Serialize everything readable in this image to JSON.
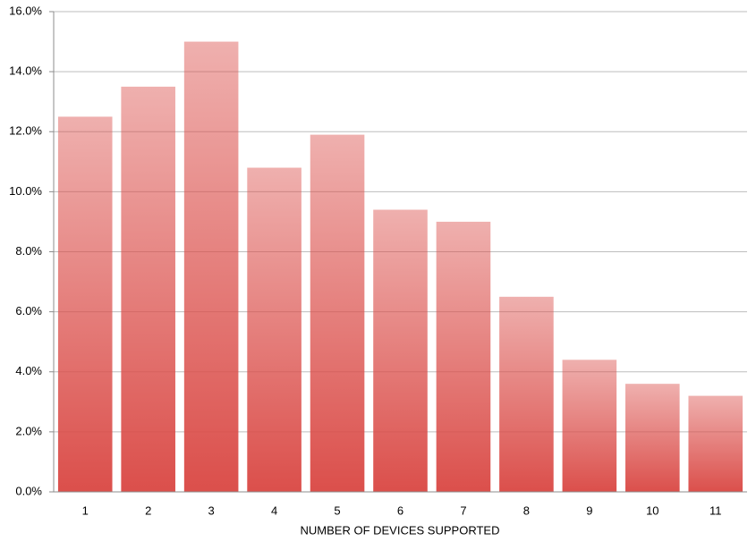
{
  "chart_data": {
    "type": "bar",
    "x_label": "NUMBER OF DEVICES SUPPORTED",
    "categories": [
      "1",
      "2",
      "3",
      "4",
      "5",
      "6",
      "7",
      "8",
      "9",
      "10",
      "11"
    ],
    "values": [
      12.5,
      13.5,
      15.0,
      10.8,
      11.9,
      9.4,
      9.0,
      6.5,
      4.4,
      3.6,
      3.2
    ],
    "color": "#db4f4b",
    "ylim": [
      0,
      16
    ],
    "yticks": [
      {
        "value": 0,
        "label": "0.0%"
      },
      {
        "value": 2,
        "label": "2.0%"
      },
      {
        "value": 4,
        "label": "4.0%"
      },
      {
        "value": 6,
        "label": "6.0%"
      },
      {
        "value": 8,
        "label": "8.0%"
      },
      {
        "value": 10,
        "label": "10.0%"
      },
      {
        "value": 12,
        "label": "12.0%"
      },
      {
        "value": 14,
        "label": "14.0%"
      },
      {
        "value": 16,
        "label": "16.0%"
      }
    ],
    "grid": true
  }
}
